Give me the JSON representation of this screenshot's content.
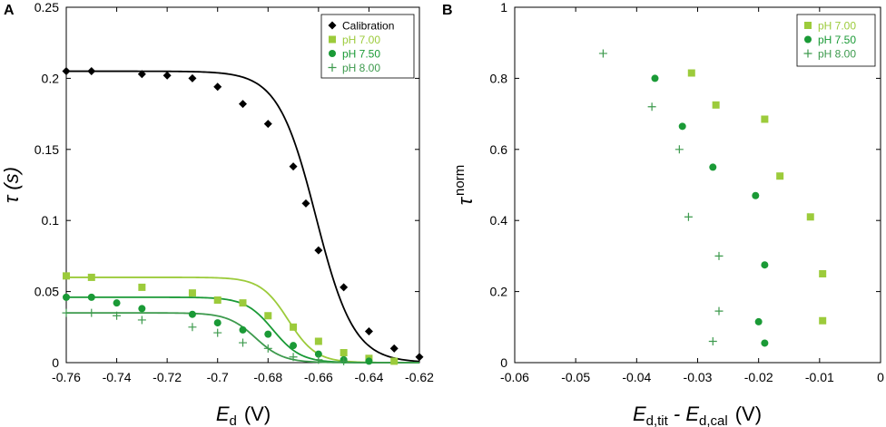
{
  "panels": [
    {
      "letter": "A",
      "ylabel": "τ (s)",
      "xlabel_main": "E",
      "xlabel_sub": "d",
      "xlabel_unit": "(V)"
    },
    {
      "letter": "B",
      "ylabel_main": "τ",
      "ylabel_sup": "norm",
      "xlabel_main": "E",
      "xlabel_sub1": "d,tit",
      "xlabel_mid": " - E",
      "xlabel_sub2": "d,cal",
      "xlabel_unit": "(V)"
    }
  ],
  "colors": {
    "calibration": "#000000",
    "ph700": "#9ccb3b",
    "ph750": "#1a9a36",
    "ph800": "#3d9a4d"
  },
  "chart_data": [
    {
      "type": "scatter",
      "panel": "A",
      "xlabel": "Ed (V)",
      "ylabel": "τ (s)",
      "xlim": [
        -0.76,
        -0.62
      ],
      "ylim": [
        0,
        0.25
      ],
      "xticks": [
        -0.76,
        -0.74,
        -0.72,
        -0.7,
        -0.68,
        -0.66,
        -0.64,
        -0.62
      ],
      "xtick_labels": [
        "-0.76",
        "-0.74",
        "-0.72",
        "-0.7",
        "-0.68",
        "-0.66",
        "-0.64",
        "-0.62"
      ],
      "yticks": [
        0,
        0.05,
        0.1,
        0.15,
        0.2,
        0.25
      ],
      "ytick_labels": [
        "0",
        "0.05",
        "0.1",
        "0.15",
        "0.2",
        "0.25"
      ],
      "legend_position": "top-right",
      "series": [
        {
          "name": "Calibration",
          "marker": "diamond",
          "color_key": "calibration",
          "fit": {
            "top": 0.205,
            "mid": -0.661,
            "width": 0.0075
          },
          "x": [
            -0.76,
            -0.75,
            -0.73,
            -0.72,
            -0.71,
            -0.7,
            -0.69,
            -0.68,
            -0.67,
            -0.665,
            -0.66,
            -0.65,
            -0.64,
            -0.63,
            -0.62
          ],
          "y": [
            0.205,
            0.205,
            0.203,
            0.202,
            0.2,
            0.194,
            0.182,
            0.168,
            0.138,
            0.112,
            0.079,
            0.053,
            0.022,
            0.01,
            0.004
          ]
        },
        {
          "name": "pH 7.00",
          "marker": "square",
          "color_key": "ph700",
          "fit": {
            "top": 0.06,
            "mid": -0.672,
            "width": 0.0055
          },
          "x": [
            -0.76,
            -0.75,
            -0.73,
            -0.71,
            -0.7,
            -0.69,
            -0.68,
            -0.67,
            -0.66,
            -0.65,
            -0.64,
            -0.63
          ],
          "y": [
            0.061,
            0.06,
            0.053,
            0.049,
            0.044,
            0.042,
            0.033,
            0.025,
            0.015,
            0.007,
            0.003,
            0.001
          ]
        },
        {
          "name": "pH 7.50",
          "marker": "circle",
          "color_key": "ph750",
          "fit": {
            "top": 0.046,
            "mid": -0.678,
            "width": 0.0055
          },
          "x": [
            -0.76,
            -0.75,
            -0.74,
            -0.73,
            -0.71,
            -0.7,
            -0.69,
            -0.68,
            -0.67,
            -0.66,
            -0.65,
            -0.64
          ],
          "y": [
            0.046,
            0.046,
            0.042,
            0.038,
            0.034,
            0.028,
            0.023,
            0.02,
            0.012,
            0.006,
            0.002,
            0.001
          ]
        },
        {
          "name": "pH 8.00",
          "marker": "plus",
          "color_key": "ph800",
          "fit": {
            "top": 0.035,
            "mid": -0.685,
            "width": 0.0055
          },
          "x": [
            -0.76,
            -0.75,
            -0.74,
            -0.73,
            -0.71,
            -0.7,
            -0.69,
            -0.68,
            -0.67,
            -0.66,
            -0.65
          ],
          "y": [
            0.035,
            0.035,
            0.033,
            0.03,
            0.025,
            0.021,
            0.014,
            0.01,
            0.004,
            0.002,
            0.001
          ]
        }
      ]
    },
    {
      "type": "scatter",
      "panel": "B",
      "xlabel": "Ed,tit - Ed,cal (V)",
      "ylabel": "τ norm",
      "xlim": [
        -0.06,
        0
      ],
      "ylim": [
        0,
        1
      ],
      "xticks": [
        -0.06,
        -0.05,
        -0.04,
        -0.03,
        -0.02,
        -0.01,
        0
      ],
      "xtick_labels": [
        "-0.06",
        "-0.05",
        "-0.04",
        "-0.03",
        "-0.02",
        "-0.01",
        "0"
      ],
      "yticks": [
        0,
        0.2,
        0.4,
        0.6,
        0.8,
        1
      ],
      "ytick_labels": [
        "0",
        "0.2",
        "0.4",
        "0.6",
        "0.8",
        "1"
      ],
      "legend_position": "top-right",
      "series": [
        {
          "name": "pH 7.00",
          "marker": "square",
          "color_key": "ph700",
          "x": [
            -0.031,
            -0.027,
            -0.019,
            -0.0165,
            -0.0115,
            -0.0095,
            -0.0095
          ],
          "y": [
            0.815,
            0.725,
            0.685,
            0.525,
            0.41,
            0.25,
            0.118
          ]
        },
        {
          "name": "pH 7.50",
          "marker": "circle",
          "color_key": "ph750",
          "x": [
            -0.037,
            -0.0325,
            -0.0275,
            -0.0205,
            -0.019,
            -0.02,
            -0.019
          ],
          "y": [
            0.8,
            0.665,
            0.55,
            0.47,
            0.275,
            0.115,
            0.055
          ]
        },
        {
          "name": "pH 8.00",
          "marker": "plus",
          "color_key": "ph800",
          "x": [
            -0.0455,
            -0.0375,
            -0.033,
            -0.0315,
            -0.0265,
            -0.0265,
            -0.0275
          ],
          "y": [
            0.87,
            0.72,
            0.6,
            0.41,
            0.3,
            0.145,
            0.06
          ]
        }
      ]
    }
  ]
}
